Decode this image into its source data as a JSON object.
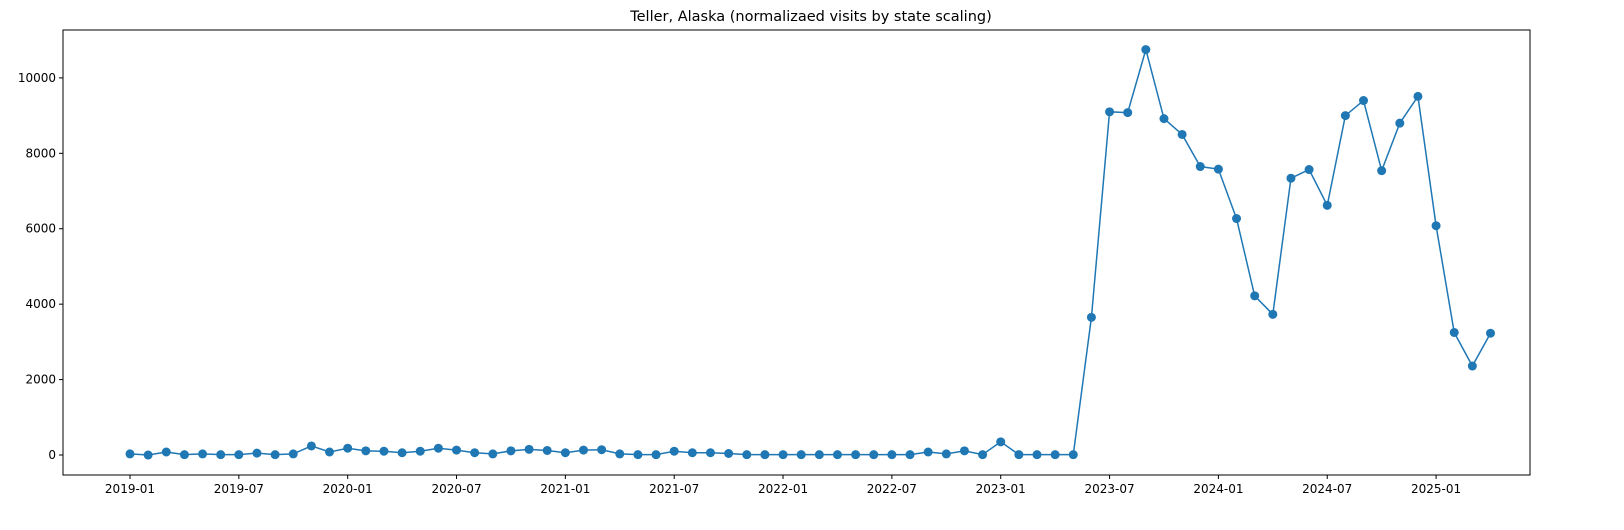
{
  "chart_data": {
    "type": "line",
    "title": "Teller, Alaska (normalizaed visits by state scaling)",
    "x": [
      "2019-01",
      "2019-02",
      "2019-03",
      "2019-04",
      "2019-05",
      "2019-06",
      "2019-07",
      "2019-08",
      "2019-09",
      "2019-10",
      "2019-11",
      "2019-12",
      "2020-01",
      "2020-02",
      "2020-03",
      "2020-04",
      "2020-05",
      "2020-06",
      "2020-07",
      "2020-08",
      "2020-09",
      "2020-10",
      "2020-11",
      "2020-12",
      "2021-01",
      "2021-02",
      "2021-03",
      "2021-04",
      "2021-05",
      "2021-06",
      "2021-07",
      "2021-08",
      "2021-09",
      "2021-10",
      "2021-11",
      "2021-12",
      "2022-01",
      "2022-02",
      "2022-03",
      "2022-04",
      "2022-05",
      "2022-06",
      "2022-07",
      "2022-08",
      "2022-09",
      "2022-10",
      "2022-11",
      "2022-12",
      "2023-01",
      "2023-02",
      "2023-03",
      "2023-04",
      "2023-05",
      "2023-06",
      "2023-07",
      "2023-08",
      "2023-09",
      "2023-10",
      "2023-11",
      "2023-12",
      "2024-01",
      "2024-02",
      "2024-03",
      "2024-04",
      "2024-05",
      "2024-06",
      "2024-07",
      "2024-08",
      "2024-09",
      "2024-10",
      "2024-11",
      "2024-12",
      "2025-01",
      "2025-02",
      "2025-03",
      "2025-04"
    ],
    "series": [
      {
        "color": "#1f77b4",
        "values": [
          30,
          0,
          80,
          10,
          30,
          10,
          10,
          50,
          10,
          30,
          240,
          80,
          180,
          110,
          100,
          60,
          100,
          180,
          130,
          60,
          30,
          110,
          150,
          120,
          60,
          130,
          140,
          30,
          10,
          10,
          100,
          60,
          60,
          40,
          10,
          10,
          10,
          10,
          10,
          10,
          10,
          10,
          10,
          10,
          80,
          30,
          110,
          10,
          350,
          10,
          10,
          10,
          10,
          3650,
          9100,
          9080,
          10750,
          8920,
          8500,
          7650,
          7580,
          6270,
          4220,
          3730,
          7340,
          7570,
          6620,
          9000,
          9400,
          7540,
          8800,
          9510,
          6080,
          3250,
          2360,
          3230
        ]
      }
    ],
    "xticks": [
      "2019-01",
      "2019-07",
      "2020-01",
      "2020-07",
      "2021-01",
      "2021-07",
      "2022-01",
      "2022-07",
      "2023-01",
      "2023-07",
      "2024-01",
      "2024-07",
      "2025-01"
    ],
    "ylim": [
      -530,
      11270
    ],
    "yticks": [
      0,
      2000,
      4000,
      6000,
      8000,
      10000
    ],
    "grid": false
  }
}
